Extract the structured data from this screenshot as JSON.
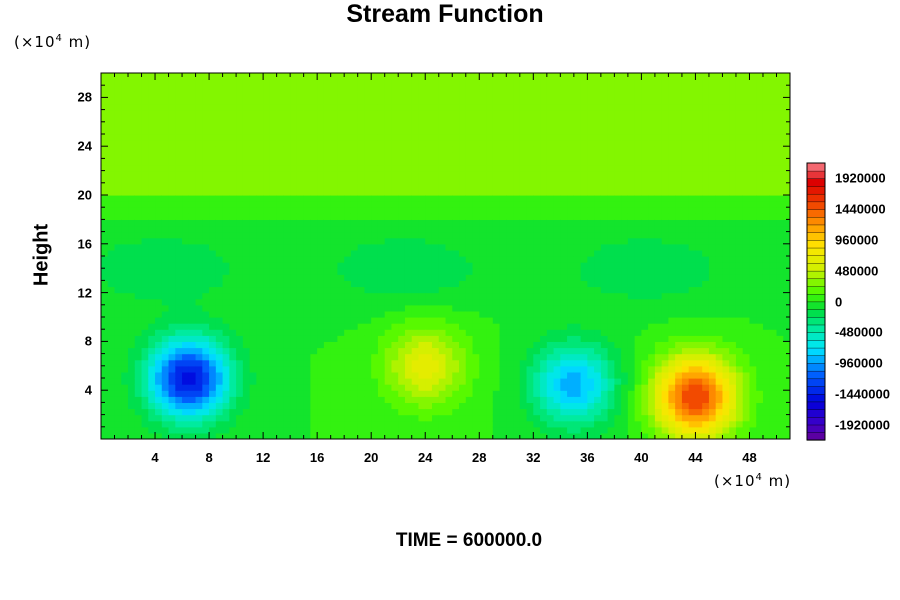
{
  "title": "Stream Function",
  "y_unit": {
    "prefix": "(×10",
    "exp": "4",
    "suffix": " m)"
  },
  "x_unit": {
    "prefix": "(×10",
    "exp": "4",
    "suffix": " m)"
  },
  "ylabel": "Height",
  "footer": "TIME = 600000.0",
  "chart_data": {
    "type": "heatmap",
    "title": "Stream Function",
    "xlabel": "",
    "ylabel": "Height",
    "xlim": [
      0,
      51
    ],
    "ylim": [
      0,
      30
    ],
    "x_ticks": [
      4,
      8,
      12,
      16,
      20,
      24,
      28,
      32,
      36,
      40,
      44,
      48
    ],
    "x_tick_labels": [
      "4",
      "8",
      "12",
      "16",
      "20",
      "24",
      "28",
      "32",
      "36",
      "40",
      "44",
      "48"
    ],
    "y_ticks": [
      4,
      8,
      12,
      16,
      20,
      24,
      28
    ],
    "y_tick_labels": [
      "4",
      "8",
      "12",
      "16",
      "20",
      "24",
      "28"
    ],
    "colorbar": {
      "min": -2160000,
      "max": 2160000,
      "step": 120000,
      "labels": [
        "1920000",
        "1440000",
        "960000",
        "480000",
        "0",
        "-480000",
        "-960000",
        "-1440000",
        "-1920000"
      ],
      "label_values": [
        1920000,
        1440000,
        960000,
        480000,
        0,
        -480000,
        -960000,
        -1440000,
        -1920000
      ]
    },
    "features": [
      {
        "kind": "min",
        "x": 6.5,
        "y": 5,
        "value": -1500000
      },
      {
        "kind": "max",
        "x": 24,
        "y": 6,
        "value": 650000
      },
      {
        "kind": "min",
        "x": 35,
        "y": 4.5,
        "value": -900000
      },
      {
        "kind": "max",
        "x": 44,
        "y": 3.5,
        "value": 1550000
      }
    ]
  }
}
